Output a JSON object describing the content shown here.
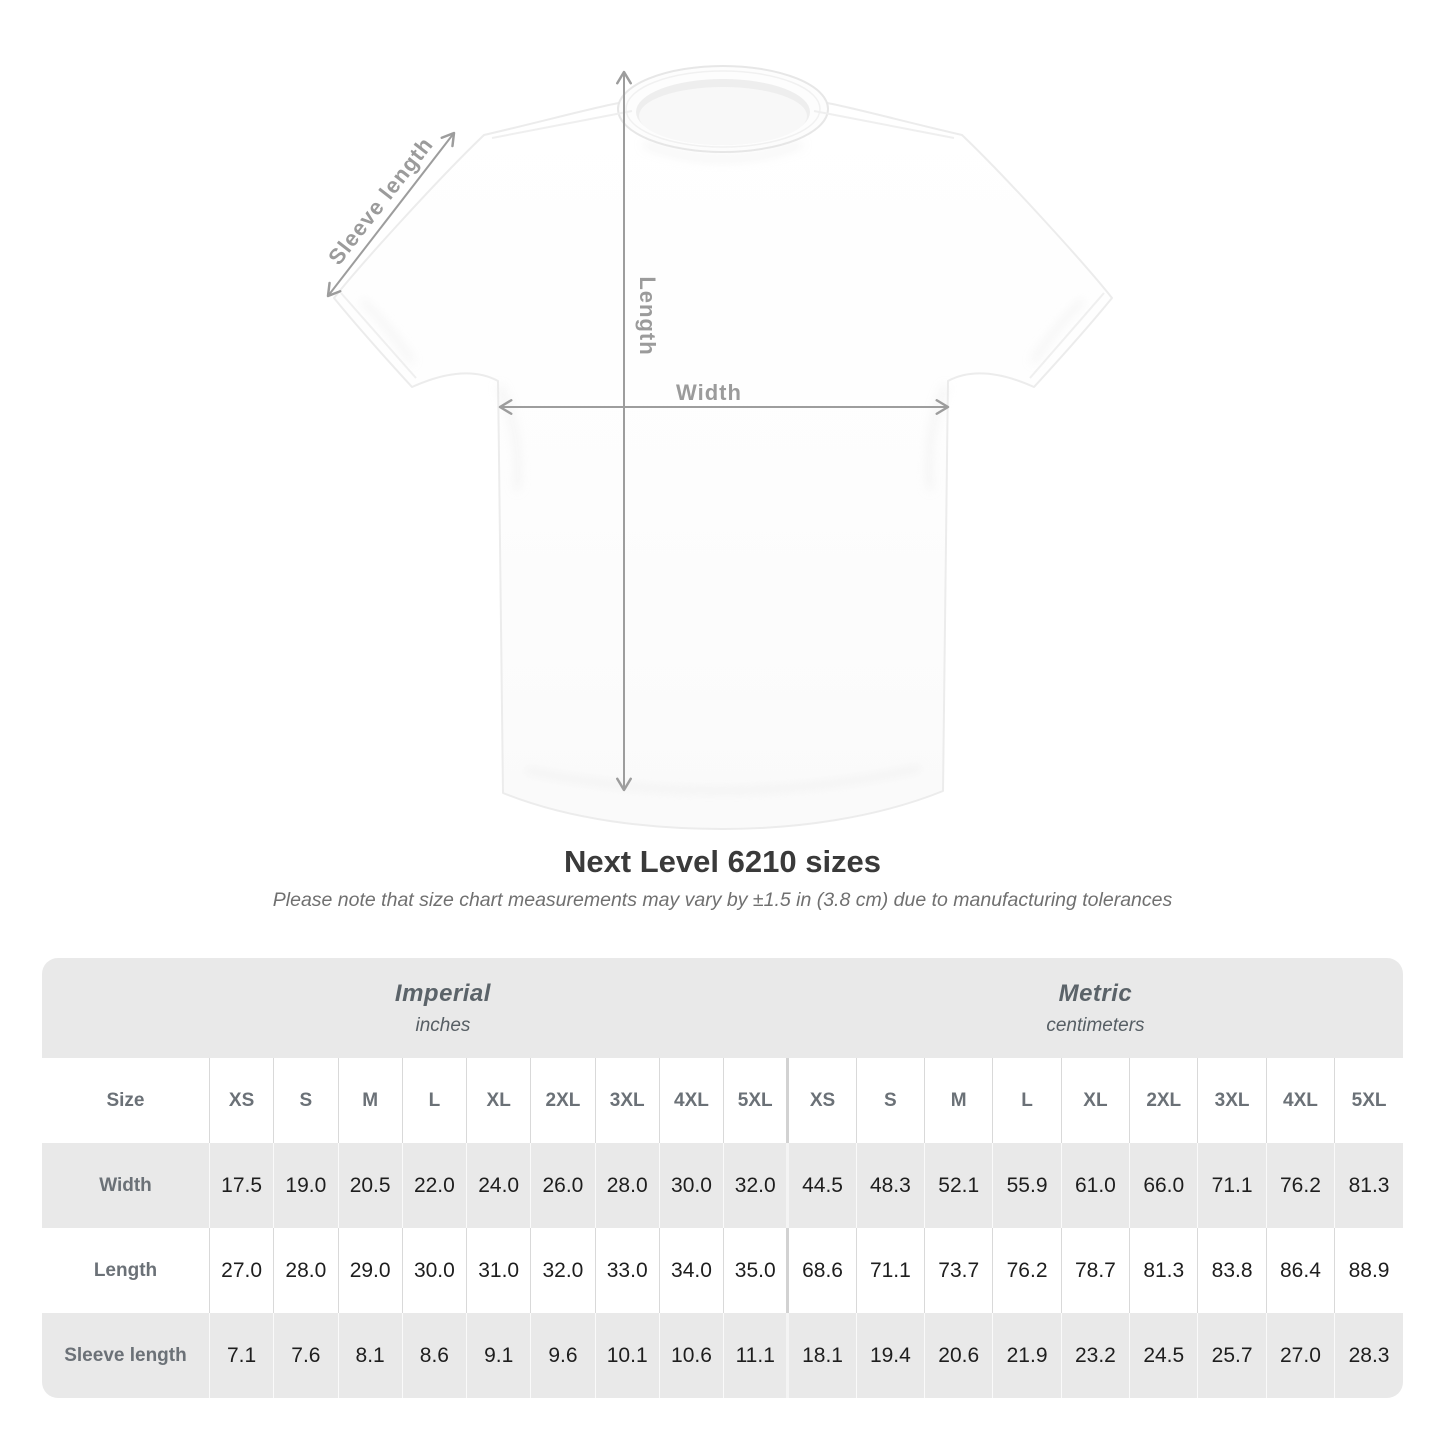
{
  "diagram": {
    "labels": {
      "width": "Width",
      "length": "Length",
      "sleeve": "Sleeve length"
    },
    "arrow_color": "#9d9d9d",
    "label_color": "#9b9b9b"
  },
  "title": "Next Level 6210 sizes",
  "subtitle": "Please note that size chart measurements may vary by ±1.5 in (3.8 cm) due to manufacturing tolerances",
  "table": {
    "size_label": "Size",
    "unit_groups": [
      {
        "name": "Imperial",
        "unit": "inches"
      },
      {
        "name": "Metric",
        "unit": "centimeters"
      }
    ],
    "sizes": [
      "XS",
      "S",
      "M",
      "L",
      "XL",
      "2XL",
      "3XL",
      "4XL",
      "5XL"
    ],
    "rows": [
      {
        "label": "Width",
        "imperial": [
          "17.5",
          "19.0",
          "20.5",
          "22.0",
          "24.0",
          "26.0",
          "28.0",
          "30.0",
          "32.0"
        ],
        "metric": [
          "44.5",
          "48.3",
          "52.1",
          "55.9",
          "61.0",
          "66.0",
          "71.1",
          "76.2",
          "81.3"
        ]
      },
      {
        "label": "Length",
        "imperial": [
          "27.0",
          "28.0",
          "29.0",
          "30.0",
          "31.0",
          "32.0",
          "33.0",
          "34.0",
          "35.0"
        ],
        "metric": [
          "68.6",
          "71.1",
          "73.7",
          "76.2",
          "78.7",
          "81.3",
          "83.8",
          "86.4",
          "88.9"
        ]
      },
      {
        "label": "Sleeve length",
        "imperial": [
          "7.1",
          "7.6",
          "8.1",
          "8.6",
          "9.1",
          "9.6",
          "10.1",
          "10.6",
          "11.1"
        ],
        "metric": [
          "18.1",
          "19.4",
          "20.6",
          "21.9",
          "23.2",
          "24.5",
          "25.7",
          "27.0",
          "28.3"
        ]
      }
    ],
    "colors": {
      "shade_row": "#e9e9e9",
      "header_text": "#6b7177",
      "value_text": "#1e1e1e",
      "title_text": "#3a3a3a",
      "subtitle_text": "#707070"
    }
  },
  "chart_data": {
    "type": "table",
    "title": "Next Level 6210 sizes",
    "note": "Please note that size chart measurements may vary by ±1.5 in (3.8 cm) due to manufacturing tolerances",
    "column_groups": [
      "Imperial (inches)",
      "Metric (centimeters)"
    ],
    "columns": [
      "XS",
      "S",
      "M",
      "L",
      "XL",
      "2XL",
      "3XL",
      "4XL",
      "5XL",
      "XS",
      "S",
      "M",
      "L",
      "XL",
      "2XL",
      "3XL",
      "4XL",
      "5XL"
    ],
    "rows": [
      {
        "label": "Width",
        "values": [
          17.5,
          19.0,
          20.5,
          22.0,
          24.0,
          26.0,
          28.0,
          30.0,
          32.0,
          44.5,
          48.3,
          52.1,
          55.9,
          61.0,
          66.0,
          71.1,
          76.2,
          81.3
        ]
      },
      {
        "label": "Length",
        "values": [
          27.0,
          28.0,
          29.0,
          30.0,
          31.0,
          32.0,
          33.0,
          34.0,
          35.0,
          68.6,
          71.1,
          73.7,
          76.2,
          78.7,
          81.3,
          83.8,
          86.4,
          88.9
        ]
      },
      {
        "label": "Sleeve length",
        "values": [
          7.1,
          7.6,
          8.1,
          8.6,
          9.1,
          9.6,
          10.1,
          10.6,
          11.1,
          18.1,
          19.4,
          20.6,
          21.9,
          23.2,
          24.5,
          25.7,
          27.0,
          28.3
        ]
      }
    ]
  }
}
